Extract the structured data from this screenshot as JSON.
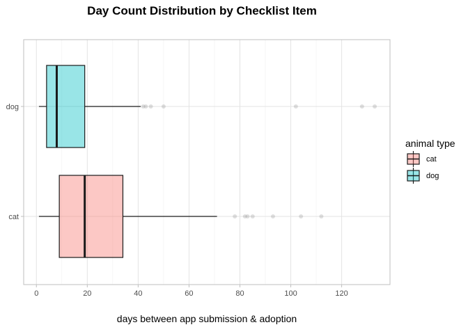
{
  "chart_data": {
    "type": "boxplot",
    "orientation": "horizontal",
    "title": "Day Count Distribution by Checklist Item",
    "xlabel": "days between app submission & adoption",
    "ylabel": "",
    "xlim": [
      -5,
      139
    ],
    "xticks": [
      0,
      20,
      40,
      60,
      80,
      100,
      120
    ],
    "xtick_labels": [
      "0",
      "20",
      "40",
      "60",
      "80",
      "100",
      "120"
    ],
    "categories": [
      "dog",
      "cat"
    ],
    "series": [
      {
        "name": "dog",
        "color": "#00BFC4",
        "q1": 4,
        "median": 8,
        "q3": 19,
        "whisker_low": 1,
        "whisker_high": 41,
        "outliers": [
          42,
          43,
          45,
          50,
          102,
          128,
          133
        ]
      },
      {
        "name": "cat",
        "color": "#F8766D",
        "q1": 9,
        "median": 19,
        "q3": 34,
        "whisker_low": 1,
        "whisker_high": 71,
        "outliers": [
          78,
          82,
          83,
          85,
          93,
          104,
          112
        ]
      }
    ],
    "legend": {
      "title": "animal type",
      "position": "right",
      "entries": [
        "cat",
        "dog"
      ]
    },
    "grid": true
  }
}
